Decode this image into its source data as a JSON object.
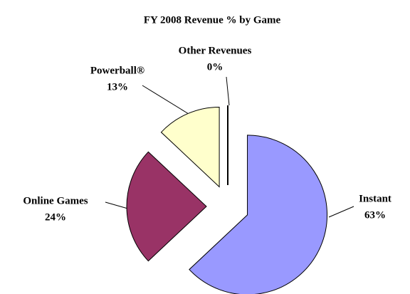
{
  "chart_data": {
    "type": "pie",
    "title": "FY 2008 Revenue % by Game",
    "categories": [
      "Instant",
      "Online Games",
      "Powerball®",
      "Other Revenues"
    ],
    "values": [
      63,
      24,
      13,
      0
    ],
    "value_labels": [
      "63%",
      "24%",
      "13%",
      "0%"
    ],
    "colors": [
      "#9999ff",
      "#993366",
      "#ffffcc",
      "#ffffff"
    ]
  }
}
